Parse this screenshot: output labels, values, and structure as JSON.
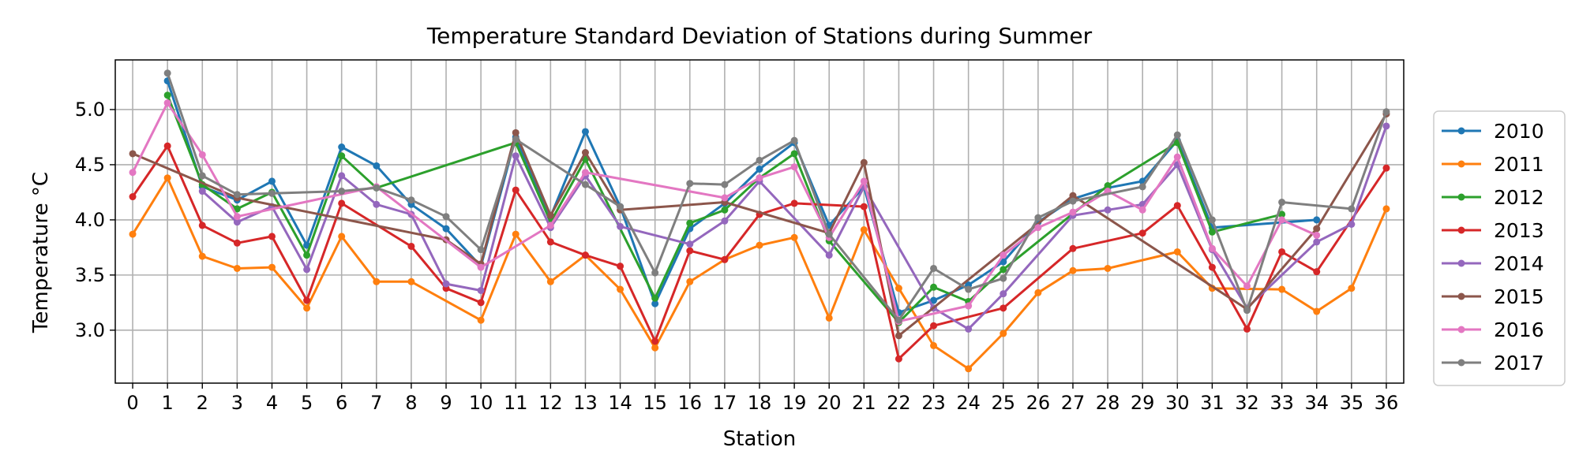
{
  "chart_data": {
    "type": "line",
    "title": "Temperature Standard Deviation of Stations during Summer",
    "xlabel": "Station",
    "ylabel": "Temperature $^\\circ C$",
    "ylabel_display": "Temperature  °C",
    "xlim": [
      -0.5,
      36.5
    ],
    "ylim": [
      2.52,
      5.45
    ],
    "x_ticks": [
      0,
      1,
      2,
      3,
      4,
      5,
      6,
      7,
      8,
      9,
      10,
      11,
      12,
      13,
      14,
      15,
      16,
      17,
      18,
      19,
      20,
      21,
      22,
      23,
      24,
      25,
      26,
      27,
      28,
      29,
      30,
      31,
      32,
      33,
      34,
      35,
      36
    ],
    "y_ticks": [
      3.0,
      3.5,
      4.0,
      4.5,
      5.0
    ],
    "y_tick_labels": [
      "3.0",
      "3.5",
      "4.0",
      "4.5",
      "5.0"
    ],
    "grid": true,
    "legend_position": "outside-right",
    "series": [
      {
        "name": "2010",
        "color": "#1f77b4",
        "points": [
          [
            1,
            5.26
          ],
          [
            2,
            4.3
          ],
          [
            3,
            4.18
          ],
          [
            4,
            4.35
          ],
          [
            5,
            3.77
          ],
          [
            6,
            4.66
          ],
          [
            7,
            4.49
          ],
          [
            8,
            4.14
          ],
          [
            9,
            3.92
          ],
          [
            10,
            3.58
          ],
          [
            11,
            4.75
          ],
          [
            12,
            4.03
          ],
          [
            13,
            4.8
          ],
          [
            14,
            4.12
          ],
          [
            15,
            3.24
          ],
          [
            16,
            3.92
          ],
          [
            17,
            4.15
          ],
          [
            18,
            4.46
          ],
          [
            19,
            4.7
          ],
          [
            20,
            3.95
          ],
          [
            21,
            4.3
          ],
          [
            22,
            3.16
          ],
          [
            23,
            3.27
          ],
          [
            24,
            3.41
          ],
          [
            25,
            3.62
          ],
          [
            26,
            3.98
          ],
          [
            27,
            4.19
          ],
          [
            28,
            4.29
          ],
          [
            29,
            4.35
          ],
          [
            30,
            4.72
          ],
          [
            31,
            3.93
          ],
          [
            34,
            4.0
          ]
        ]
      },
      {
        "name": "2011",
        "color": "#ff7f0e",
        "points": [
          [
            0,
            3.87
          ],
          [
            1,
            4.38
          ],
          [
            2,
            3.67
          ],
          [
            3,
            3.56
          ],
          [
            4,
            3.57
          ],
          [
            5,
            3.2
          ],
          [
            6,
            3.85
          ],
          [
            7,
            3.44
          ],
          [
            8,
            3.44
          ],
          [
            10,
            3.09
          ],
          [
            11,
            3.87
          ],
          [
            12,
            3.44
          ],
          [
            13,
            3.68
          ],
          [
            14,
            3.37
          ],
          [
            15,
            2.84
          ],
          [
            16,
            3.44
          ],
          [
            17,
            3.64
          ],
          [
            18,
            3.77
          ],
          [
            19,
            3.84
          ],
          [
            20,
            3.11
          ],
          [
            21,
            3.91
          ],
          [
            22,
            3.38
          ],
          [
            23,
            2.86
          ],
          [
            24,
            2.65
          ],
          [
            25,
            2.97
          ],
          [
            26,
            3.34
          ],
          [
            27,
            3.54
          ],
          [
            28,
            3.56
          ],
          [
            30,
            3.71
          ],
          [
            31,
            3.38
          ],
          [
            33,
            3.37
          ],
          [
            34,
            3.17
          ],
          [
            35,
            3.38
          ],
          [
            36,
            4.1
          ]
        ]
      },
      {
        "name": "2012",
        "color": "#2ca02c",
        "points": [
          [
            1,
            5.13
          ],
          [
            2,
            4.32
          ],
          [
            3,
            4.1
          ],
          [
            4,
            4.25
          ],
          [
            5,
            3.68
          ],
          [
            6,
            4.58
          ],
          [
            7,
            4.29
          ],
          [
            11,
            4.7
          ],
          [
            12,
            3.98
          ],
          [
            13,
            4.55
          ],
          [
            15,
            3.29
          ],
          [
            16,
            3.97
          ],
          [
            17,
            4.09
          ],
          [
            18,
            4.38
          ],
          [
            19,
            4.6
          ],
          [
            20,
            3.81
          ],
          [
            22,
            3.07
          ],
          [
            23,
            3.39
          ],
          [
            24,
            3.26
          ],
          [
            25,
            3.55
          ],
          [
            28,
            4.31
          ],
          [
            30,
            4.7
          ],
          [
            31,
            3.89
          ],
          [
            33,
            4.05
          ]
        ]
      },
      {
        "name": "2013",
        "color": "#d62728",
        "points": [
          [
            0,
            4.21
          ],
          [
            1,
            4.67
          ],
          [
            2,
            3.95
          ],
          [
            3,
            3.79
          ],
          [
            4,
            3.85
          ],
          [
            5,
            3.27
          ],
          [
            6,
            4.15
          ],
          [
            8,
            3.76
          ],
          [
            9,
            3.38
          ],
          [
            10,
            3.25
          ],
          [
            11,
            4.27
          ],
          [
            12,
            3.8
          ],
          [
            13,
            3.68
          ],
          [
            14,
            3.58
          ],
          [
            15,
            2.9
          ],
          [
            16,
            3.72
          ],
          [
            17,
            3.64
          ],
          [
            18,
            4.05
          ],
          [
            19,
            4.15
          ],
          [
            21,
            4.12
          ],
          [
            22,
            2.74
          ],
          [
            23,
            3.04
          ],
          [
            25,
            3.2
          ],
          [
            27,
            3.74
          ],
          [
            29,
            3.88
          ],
          [
            30,
            4.13
          ],
          [
            31,
            3.57
          ],
          [
            32,
            3.01
          ],
          [
            33,
            3.71
          ],
          [
            34,
            3.53
          ],
          [
            36,
            4.47
          ]
        ]
      },
      {
        "name": "2014",
        "color": "#9467bd",
        "points": [
          [
            2,
            4.26
          ],
          [
            3,
            3.98
          ],
          [
            4,
            4.12
          ],
          [
            5,
            3.55
          ],
          [
            6,
            4.4
          ],
          [
            7,
            4.14
          ],
          [
            8,
            4.05
          ],
          [
            9,
            3.42
          ],
          [
            10,
            3.36
          ],
          [
            11,
            4.58
          ],
          [
            12,
            3.93
          ],
          [
            13,
            4.4
          ],
          [
            14,
            3.94
          ],
          [
            16,
            3.78
          ],
          [
            17,
            3.99
          ],
          [
            18,
            4.35
          ],
          [
            20,
            3.68
          ],
          [
            21,
            4.3
          ],
          [
            23,
            3.2
          ],
          [
            24,
            3.01
          ],
          [
            25,
            3.33
          ],
          [
            27,
            4.04
          ],
          [
            28,
            4.09
          ],
          [
            29,
            4.14
          ],
          [
            30,
            4.5
          ],
          [
            31,
            3.73
          ],
          [
            32,
            3.2
          ],
          [
            34,
            3.8
          ],
          [
            35,
            3.96
          ],
          [
            36,
            4.85
          ]
        ]
      },
      {
        "name": "2015",
        "color": "#8c564b",
        "points": [
          [
            0,
            4.6
          ],
          [
            3,
            4.2
          ],
          [
            9,
            3.82
          ],
          [
            10,
            3.6
          ],
          [
            11,
            4.79
          ],
          [
            12,
            4.04
          ],
          [
            13,
            4.61
          ],
          [
            14,
            4.09
          ],
          [
            17,
            4.16
          ],
          [
            20,
            3.88
          ],
          [
            21,
            4.52
          ],
          [
            22,
            2.95
          ],
          [
            27,
            4.22
          ],
          [
            32,
            3.19
          ],
          [
            34,
            3.92
          ],
          [
            36,
            4.96
          ]
        ]
      },
      {
        "name": "2016",
        "color": "#e377c2",
        "points": [
          [
            0,
            4.43
          ],
          [
            1,
            5.06
          ],
          [
            2,
            4.59
          ],
          [
            3,
            4.03
          ],
          [
            7,
            4.3
          ],
          [
            10,
            3.57
          ],
          [
            12,
            3.95
          ],
          [
            13,
            4.43
          ],
          [
            17,
            4.2
          ],
          [
            18,
            4.38
          ],
          [
            19,
            4.48
          ],
          [
            20,
            3.84
          ],
          [
            21,
            4.35
          ],
          [
            22,
            3.08
          ],
          [
            24,
            3.22
          ],
          [
            25,
            3.68
          ],
          [
            26,
            3.93
          ],
          [
            27,
            4.07
          ],
          [
            28,
            4.26
          ],
          [
            29,
            4.09
          ],
          [
            30,
            4.57
          ],
          [
            31,
            3.74
          ],
          [
            32,
            3.4
          ],
          [
            33,
            4.0
          ],
          [
            34,
            3.86
          ]
        ]
      },
      {
        "name": "2017",
        "color": "#7f7f7f",
        "points": [
          [
            1,
            5.33
          ],
          [
            2,
            4.4
          ],
          [
            3,
            4.23
          ],
          [
            4,
            4.24
          ],
          [
            6,
            4.26
          ],
          [
            7,
            4.29
          ],
          [
            8,
            4.18
          ],
          [
            9,
            4.03
          ],
          [
            10,
            3.73
          ],
          [
            11,
            4.73
          ],
          [
            13,
            4.32
          ],
          [
            14,
            4.12
          ],
          [
            15,
            3.52
          ],
          [
            16,
            4.33
          ],
          [
            17,
            4.32
          ],
          [
            18,
            4.54
          ],
          [
            19,
            4.72
          ],
          [
            20,
            3.87
          ],
          [
            22,
            3.09
          ],
          [
            23,
            3.56
          ],
          [
            24,
            3.37
          ],
          [
            25,
            3.47
          ],
          [
            26,
            4.02
          ],
          [
            27,
            4.17
          ],
          [
            29,
            4.3
          ],
          [
            30,
            4.77
          ],
          [
            31,
            4.0
          ],
          [
            32,
            3.18
          ],
          [
            33,
            4.16
          ],
          [
            35,
            4.1
          ],
          [
            36,
            4.98
          ]
        ]
      }
    ]
  }
}
